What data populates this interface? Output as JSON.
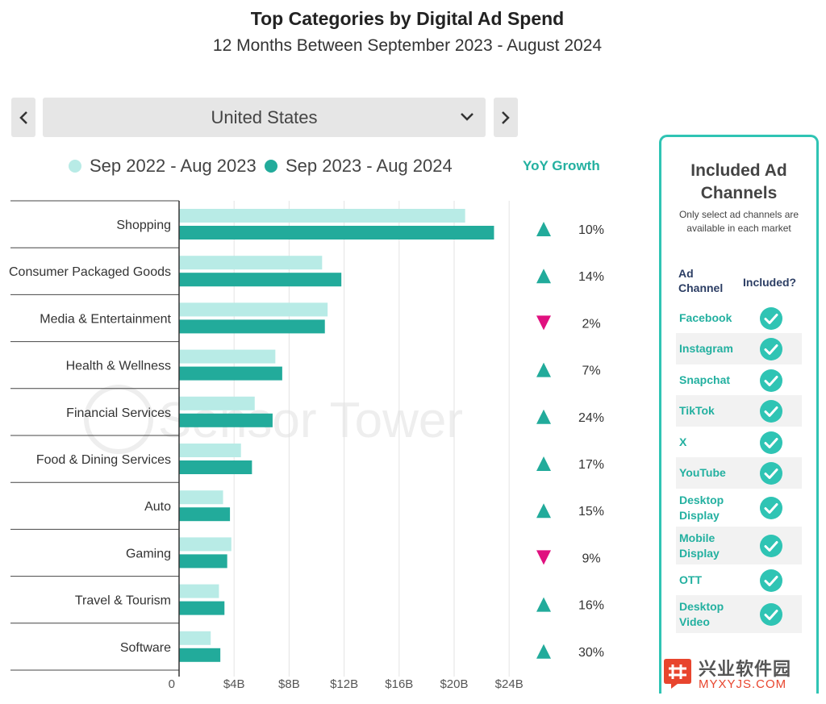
{
  "header": {
    "title": "Top Categories by Digital Ad Spend",
    "subtitle": "12 Months Between September 2023 - August 2024"
  },
  "controls": {
    "prev_icon": "chevron-left-icon",
    "next_icon": "chevron-right-icon",
    "dropdown_icon": "chevron-down-icon",
    "country_selected": "United States"
  },
  "watermark": {
    "brand": "Sensor Tower",
    "site_cn": "兴业软件园",
    "site_url": "MYXYJS.COM"
  },
  "chart_data": {
    "type": "bar",
    "orientation": "horizontal",
    "title": "Top Categories by Digital Ad Spend",
    "subtitle": "12 Months Between September 2023 - August 2024",
    "categories": [
      "Shopping",
      "Consumer Packaged Goods",
      "Media & Entertainment",
      "Health & Wellness",
      "Financial Services",
      "Food & Dining Services",
      "Auto",
      "Gaming",
      "Travel & Tourism",
      "Software"
    ],
    "series": [
      {
        "name": "Sep 2022 - Aug 2023",
        "color": "#b8ebe6",
        "values": [
          20.8,
          10.4,
          10.8,
          7.0,
          5.5,
          4.5,
          3.2,
          3.8,
          2.9,
          2.3
        ]
      },
      {
        "name": "Sep 2023 - Aug 2024",
        "color": "#22ab9b",
        "values": [
          22.9,
          11.8,
          10.6,
          7.5,
          6.8,
          5.3,
          3.7,
          3.5,
          3.3,
          3.0
        ]
      }
    ],
    "xlim": [
      0,
      24
    ],
    "xticks": [
      0,
      4,
      8,
      12,
      16,
      20,
      24
    ],
    "xtick_labels": [
      "0",
      "$4B",
      "$8B",
      "$12B",
      "$16B",
      "$20B",
      "$24B"
    ],
    "grid": true,
    "legend": "top",
    "yoy_header": "YoY Growth",
    "yoy_growth": [
      {
        "direction": "up",
        "value": "10%"
      },
      {
        "direction": "up",
        "value": "14%"
      },
      {
        "direction": "down",
        "value": "2%"
      },
      {
        "direction": "up",
        "value": "7%"
      },
      {
        "direction": "up",
        "value": "24%"
      },
      {
        "direction": "up",
        "value": "17%"
      },
      {
        "direction": "up",
        "value": "15%"
      },
      {
        "direction": "down",
        "value": "9%"
      },
      {
        "direction": "up",
        "value": "16%"
      },
      {
        "direction": "up",
        "value": "30%"
      }
    ],
    "up_color": "#22ab9b",
    "down_color": "#e0107f"
  },
  "channels_panel": {
    "title_line1": "Included Ad",
    "title_line2": "Channels",
    "note_line1": "Only select ad channels are",
    "note_line2": "available in each market",
    "col_channel_line1": "Ad",
    "col_channel_line2": "Channel",
    "col_included": "Included?",
    "check_icon": "check-circle-icon",
    "check_color": "#2fc4b4",
    "channels": [
      {
        "line1": "Facebook",
        "line2": ""
      },
      {
        "line1": "Instagram",
        "line2": ""
      },
      {
        "line1": "Snapchat",
        "line2": ""
      },
      {
        "line1": "TikTok",
        "line2": ""
      },
      {
        "line1": "X",
        "line2": ""
      },
      {
        "line1": "YouTube",
        "line2": ""
      },
      {
        "line1": "Desktop",
        "line2": "Display"
      },
      {
        "line1": "Mobile",
        "line2": "Display"
      },
      {
        "line1": "OTT",
        "line2": ""
      },
      {
        "line1": "Desktop",
        "line2": "Video"
      }
    ]
  }
}
